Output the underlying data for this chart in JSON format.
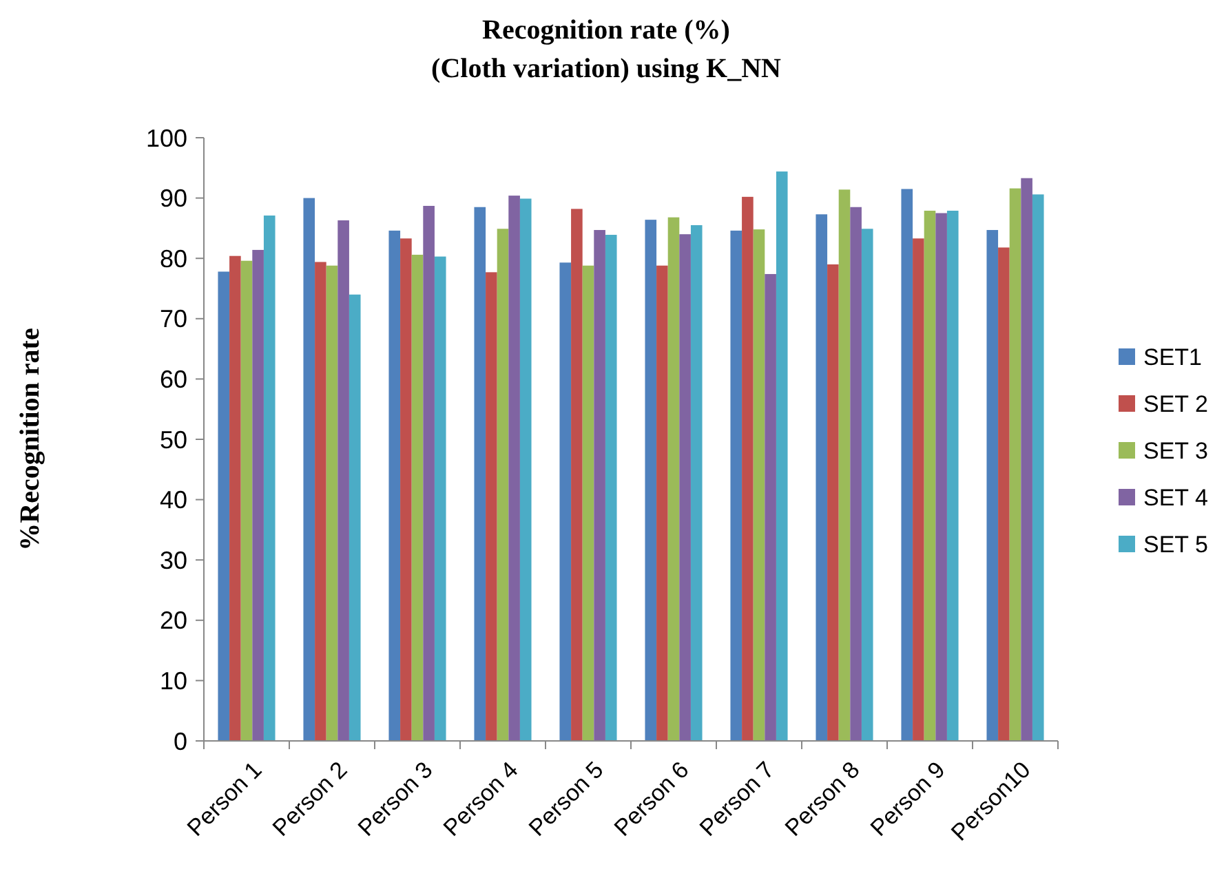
{
  "chart_data": {
    "type": "bar",
    "title": "Recognition rate (%)",
    "subtitle": "(Cloth variation) using K_NN",
    "ylabel": "%Recognition rate",
    "categories": [
      "Person 1",
      "Person 2",
      "Person 3",
      "Person 4",
      "Person 5",
      "Person 6",
      "Person 7",
      "Person 8",
      "Person 9",
      "Person10"
    ],
    "series": [
      {
        "name": "SET1",
        "color": "#4f81bd",
        "values": [
          77.8,
          90.0,
          84.6,
          88.5,
          79.3,
          86.4,
          84.6,
          87.3,
          91.5,
          84.7
        ]
      },
      {
        "name": "SET 2",
        "color": "#c0504d",
        "values": [
          80.4,
          79.4,
          83.3,
          77.7,
          88.2,
          78.8,
          90.2,
          79.0,
          83.3,
          81.8
        ]
      },
      {
        "name": "SET 3",
        "color": "#9bbb59",
        "values": [
          79.6,
          78.8,
          80.6,
          84.9,
          78.8,
          86.8,
          84.8,
          91.4,
          87.9,
          91.6
        ]
      },
      {
        "name": "SET 4",
        "color": "#8064a2",
        "values": [
          81.4,
          86.3,
          88.7,
          90.4,
          84.7,
          84.0,
          77.4,
          88.5,
          87.5,
          93.3
        ]
      },
      {
        "name": "SET 5",
        "color": "#4bacc6",
        "values": [
          87.1,
          74.0,
          80.3,
          89.9,
          83.9,
          85.5,
          94.4,
          84.9,
          87.9,
          90.6
        ]
      }
    ],
    "ylim": [
      0,
      100
    ],
    "yticks": [
      0,
      10,
      20,
      30,
      40,
      50,
      60,
      70,
      80,
      90,
      100
    ],
    "grid": false,
    "legend": "right"
  }
}
